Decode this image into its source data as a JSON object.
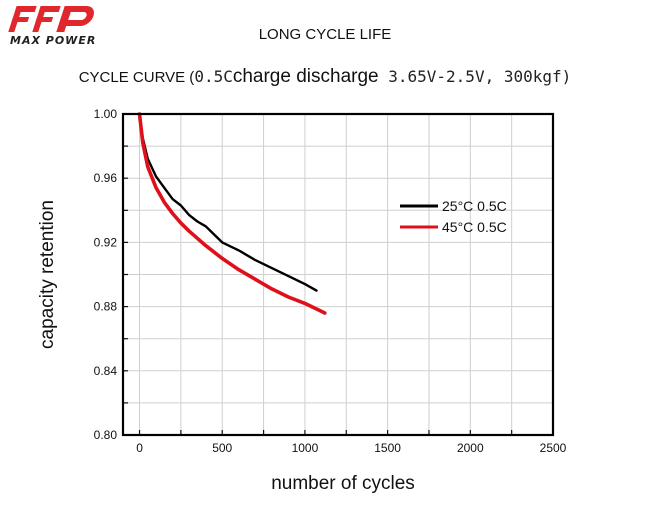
{
  "brand": {
    "name": "MAX POWER",
    "logo_color": "#e0272b"
  },
  "header": {
    "title": "LONG CYCLE LIFE",
    "subtitle_part1": "CYCLE CURVE (",
    "subtitle_part2": "0.5C",
    "subtitle_part3": "charge discharge",
    "subtitle_part4": " 3.65V-2.5V, 300kgf)"
  },
  "chart_data": {
    "type": "line",
    "title": "CYCLE CURVE (0.5C charge discharge 3.65V-2.5V, 300kgf)",
    "xlabel": "number of cycles",
    "ylabel": "capacity retention",
    "xlim": [
      -100,
      2500
    ],
    "ylim": [
      0.8,
      1.0
    ],
    "x_ticks": [
      0,
      500,
      1000,
      1500,
      2000,
      2500
    ],
    "x_tick_labels": [
      "0",
      "500",
      "1000",
      "1500",
      "2000",
      "2500"
    ],
    "y_ticks": [
      0.8,
      0.84,
      0.88,
      0.92,
      0.96,
      1.0
    ],
    "y_tick_labels": [
      "0.80",
      "0.84",
      "0.88",
      "0.92",
      "0.96",
      "1.00"
    ],
    "grid": true,
    "legend_position": "upper-right",
    "series": [
      {
        "name": "25°C 0.5C",
        "color": "#000000",
        "x": [
          0,
          20,
          50,
          100,
          150,
          200,
          250,
          300,
          350,
          400,
          450,
          500,
          600,
          700,
          800,
          900,
          1000,
          1070
        ],
        "y": [
          1.0,
          0.985,
          0.972,
          0.961,
          0.954,
          0.947,
          0.943,
          0.937,
          0.933,
          0.93,
          0.925,
          0.92,
          0.915,
          0.909,
          0.904,
          0.899,
          0.894,
          0.89
        ]
      },
      {
        "name": "45°C 0.5C",
        "color": "#e0101a",
        "x": [
          0,
          20,
          50,
          100,
          150,
          200,
          250,
          300,
          400,
          500,
          600,
          700,
          800,
          900,
          1000,
          1100,
          1120
        ],
        "y": [
          1.0,
          0.982,
          0.967,
          0.954,
          0.945,
          0.938,
          0.932,
          0.927,
          0.918,
          0.91,
          0.903,
          0.897,
          0.891,
          0.886,
          0.882,
          0.877,
          0.876
        ]
      }
    ]
  }
}
